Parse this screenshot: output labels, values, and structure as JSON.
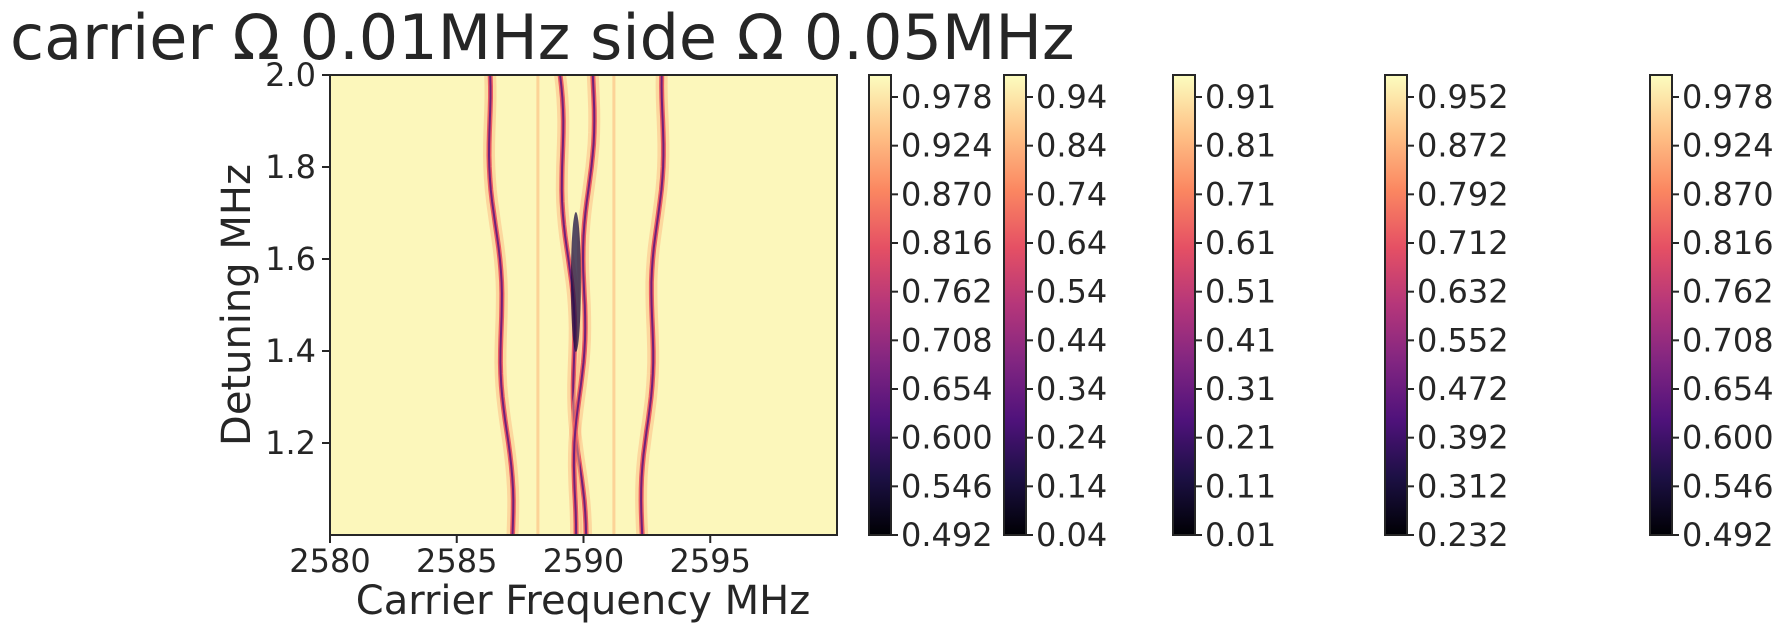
{
  "chart_data": {
    "type": "heatmap",
    "title": "carrier Ω 0.01MHz side Ω 0.05MHz",
    "xlabel": "Carrier Frequency MHz",
    "ylabel": "Detuning MHz",
    "xlim": [
      2580,
      2600
    ],
    "ylim": [
      1.0,
      2.0
    ],
    "x_ticks": [
      "2580",
      "2585",
      "2590",
      "2595"
    ],
    "y_ticks": [
      "1.2",
      "1.4",
      "1.6",
      "1.8",
      "2.0"
    ],
    "colormap": "magma",
    "background_value": 0.99,
    "features": [
      {
        "name": "outer-left dip",
        "x_at_top": 2586.2,
        "x_at_bottom": 2587.2,
        "min_value": 0.55
      },
      {
        "name": "inner-left dip",
        "x_at_top": 2589.0,
        "x_at_bottom": 2590.0,
        "min_value": 0.5
      },
      {
        "name": "inner-right dip",
        "x_at_top": 2590.4,
        "x_at_bottom": 2589.6,
        "min_value": 0.5
      },
      {
        "name": "outer-right dip",
        "x_at_top": 2593.2,
        "x_at_bottom": 2592.3,
        "min_value": 0.55
      },
      {
        "name": "faint line",
        "x_at_top": 2588.2,
        "x_at_bottom": 2588.2,
        "min_value": 0.95
      },
      {
        "name": "faint line",
        "x_at_top": 2591.2,
        "x_at_bottom": 2591.2,
        "min_value": 0.95
      }
    ],
    "colorbars": [
      {
        "ticks": [
          "0.978",
          "0.924",
          "0.870",
          "0.816",
          "0.762",
          "0.708",
          "0.654",
          "0.600",
          "0.546",
          "0.492"
        ]
      },
      {
        "ticks": [
          "0.94",
          "0.84",
          "0.74",
          "0.64",
          "0.54",
          "0.44",
          "0.34",
          "0.24",
          "0.14",
          "0.04"
        ]
      },
      {
        "ticks": [
          "0.91",
          "0.81",
          "0.71",
          "0.61",
          "0.51",
          "0.41",
          "0.31",
          "0.21",
          "0.11",
          "0.01"
        ]
      },
      {
        "ticks": [
          "0.952",
          "0.872",
          "0.792",
          "0.712",
          "0.632",
          "0.552",
          "0.472",
          "0.392",
          "0.312",
          "0.232"
        ]
      },
      {
        "ticks": [
          "0.978",
          "0.924",
          "0.870",
          "0.816",
          "0.762",
          "0.708",
          "0.654",
          "0.600",
          "0.546",
          "0.492"
        ]
      }
    ],
    "colors": {
      "magma_stops": [
        "#000004",
        "#1c1044",
        "#4f127b",
        "#812581",
        "#b5367a",
        "#e55064",
        "#fb8761",
        "#fec287",
        "#fcfdbf"
      ],
      "text": "#262626"
    }
  }
}
